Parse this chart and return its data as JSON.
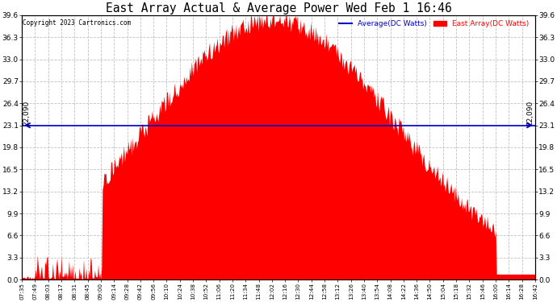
{
  "title": "East Array Actual & Average Power Wed Feb 1 16:46",
  "copyright": "Copyright 2023 Cartronics.com",
  "legend_avg": "Average(DC Watts)",
  "legend_east": "East Array(DC Watts)",
  "y_ticks": [
    0.0,
    3.3,
    6.6,
    9.9,
    13.2,
    16.5,
    19.8,
    23.1,
    26.4,
    29.7,
    33.0,
    36.3,
    39.6
  ],
  "y_min": 0.0,
  "y_max": 39.6,
  "hline_value": 23.1,
  "hline_label": "22,090",
  "fill_color": "#FF0000",
  "avg_color": "#0000CC",
  "east_color": "#FF0000",
  "background_color": "#FFFFFF",
  "grid_color": "#BBBBBB",
  "x_labels": [
    "07:35",
    "07:49",
    "08:03",
    "08:17",
    "08:31",
    "08:45",
    "09:00",
    "09:14",
    "09:28",
    "09:42",
    "09:56",
    "10:10",
    "10:24",
    "10:38",
    "10:52",
    "11:06",
    "11:20",
    "11:34",
    "11:48",
    "12:02",
    "12:16",
    "12:30",
    "12:44",
    "12:58",
    "13:12",
    "13:26",
    "13:40",
    "13:54",
    "14:08",
    "14:22",
    "14:36",
    "14:50",
    "15:04",
    "15:18",
    "15:32",
    "15:46",
    "16:00",
    "16:14",
    "16:28",
    "16:42"
  ],
  "num_points": 600
}
